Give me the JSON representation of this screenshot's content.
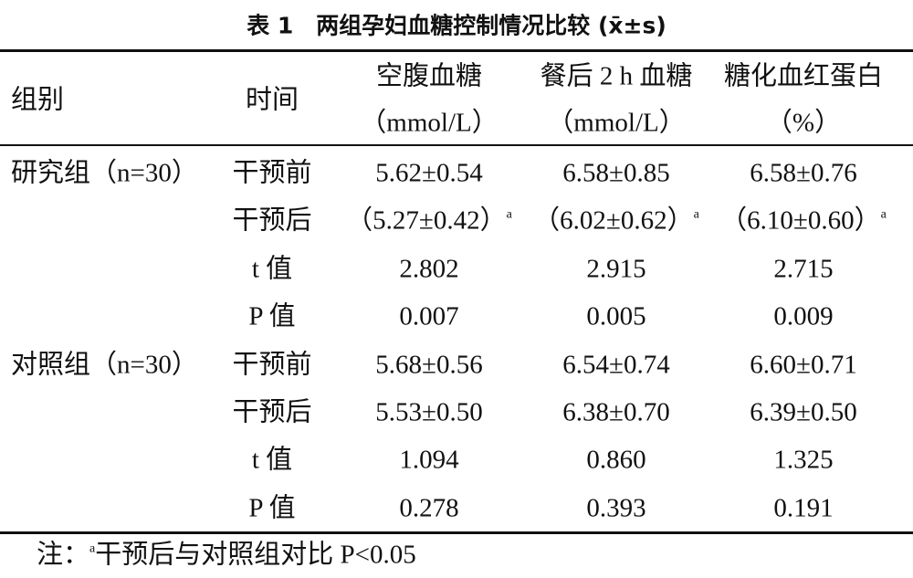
{
  "title": "表 1　两组孕妇血糖控制情况比较 (x̄±s)",
  "table": {
    "header": {
      "group": "组别",
      "time": "时间",
      "columns": [
        [
          "空腹血糖",
          "（mmol/L）"
        ],
        [
          "餐后 2 h 血糖",
          "（mmol/L）"
        ],
        [
          "糖化血红蛋白",
          "（%）"
        ]
      ]
    },
    "groups": [
      {
        "label": "研究组（n=30）",
        "rows": [
          [
            "干预前",
            {
              "text": "5.62±0.54"
            },
            {
              "text": "6.58±0.85"
            },
            {
              "text": "6.58±0.76"
            }
          ],
          [
            "干预后",
            {
              "text": "（5.27±0.42）",
              "sup": "a"
            },
            {
              "text": "（6.02±0.62）",
              "sup": "a"
            },
            {
              "text": "（6.10±0.60）",
              "sup": "a"
            }
          ],
          [
            "t 值",
            {
              "text": "2.802"
            },
            {
              "text": "2.915"
            },
            {
              "text": "2.715"
            }
          ],
          [
            "P 值",
            {
              "text": "0.007"
            },
            {
              "text": "0.005"
            },
            {
              "text": "0.009"
            }
          ]
        ]
      },
      {
        "label": "对照组（n=30）",
        "rows": [
          [
            "干预前",
            {
              "text": "5.68±0.56"
            },
            {
              "text": "6.54±0.74"
            },
            {
              "text": "6.60±0.71"
            }
          ],
          [
            "干预后",
            {
              "text": "5.53±0.50"
            },
            {
              "text": "6.38±0.70"
            },
            {
              "text": "6.39±0.50"
            }
          ],
          [
            "t 值",
            {
              "text": "1.094"
            },
            {
              "text": "0.860"
            },
            {
              "text": "1.325"
            }
          ],
          [
            "P 值",
            {
              "text": "0.278"
            },
            {
              "text": "0.393"
            },
            {
              "text": "0.191"
            }
          ]
        ]
      }
    ]
  },
  "note": {
    "prefix": "注：",
    "sup": "a",
    "text": "干预后与对照组对比 P<0.05"
  }
}
